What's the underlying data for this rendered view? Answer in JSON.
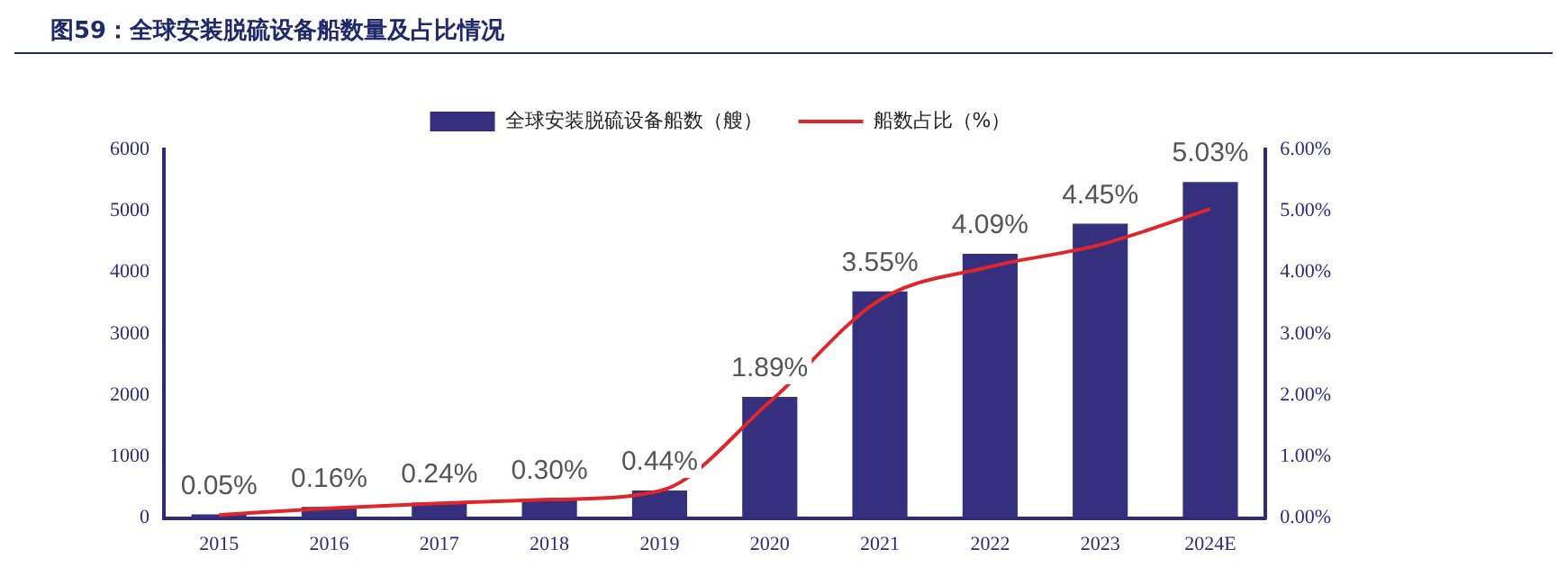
{
  "chart_data": {
    "type": "bar",
    "title": "图59：全球安装脱硫设备船数量及占比情况",
    "categories": [
      "2015",
      "2016",
      "2017",
      "2018",
      "2019",
      "2020",
      "2021",
      "2022",
      "2023",
      "2024E"
    ],
    "series": [
      {
        "name": "全球安装脱硫设备船数（艘）",
        "color": "#35307e",
        "values": [
          60,
          180,
          250,
          300,
          450,
          1970,
          3690,
          4300,
          4790,
          5470
        ]
      },
      {
        "name": "船数占比（%）",
        "type": "line",
        "axis": "y2",
        "color": "#e0262a",
        "values": [
          0.05,
          0.16,
          0.24,
          0.3,
          0.44,
          1.89,
          3.55,
          4.09,
          4.45,
          5.03
        ],
        "value_labels": [
          "0.05%",
          "0.16%",
          "0.24%",
          "0.30%",
          "0.44%",
          "1.89%",
          "3.55%",
          "4.09%",
          "4.45%",
          "5.03%"
        ]
      }
    ],
    "ylim": [
      0,
      6000
    ],
    "yticks": [
      0,
      1000,
      2000,
      3000,
      4000,
      5000,
      6000
    ],
    "y2lim": [
      0,
      6
    ],
    "y2ticks": [
      {
        "value": 0,
        "label": "0.00%"
      },
      {
        "value": 1,
        "label": "1.00%"
      },
      {
        "value": 2,
        "label": "2.00%"
      },
      {
        "value": 3,
        "label": "3.00%"
      },
      {
        "value": 4,
        "label": "4.00%"
      },
      {
        "value": 5,
        "label": "5.00%"
      },
      {
        "value": 6,
        "label": "6.00%"
      }
    ],
    "grid": false,
    "legend": "top",
    "marker": "none",
    "line_style": "solid"
  }
}
